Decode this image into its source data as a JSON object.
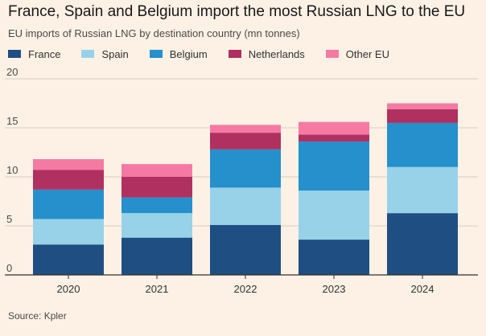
{
  "title": "France, Spain and Belgium import the most Russian LNG to the EU",
  "subtitle": "EU imports of Russian LNG by destination country (mn tonnes)",
  "source": "Source: Kpler",
  "colors": {
    "France": "#1f4e82",
    "Spain": "#98d2e8",
    "Belgium": "#2590cc",
    "Netherlands": "#b03060",
    "Other EU": "#f47aa3",
    "grid": "#d9cdc0",
    "axis": "#33302e"
  },
  "chart_data": {
    "type": "bar",
    "stacked": true,
    "title": "France, Spain and Belgium import the most Russian LNG to the EU",
    "subtitle": "EU imports of Russian LNG by destination country (mn tonnes)",
    "xlabel": "",
    "ylabel": "",
    "ylim": [
      0,
      20
    ],
    "yticks": [
      0,
      5,
      10,
      15,
      20
    ],
    "grid": true,
    "legend": "top-left",
    "categories": [
      "2020",
      "2021",
      "2022",
      "2023",
      "2024"
    ],
    "series": [
      {
        "name": "France",
        "values": [
          3.1,
          3.8,
          5.1,
          3.6,
          6.3
        ]
      },
      {
        "name": "Spain",
        "values": [
          2.6,
          2.5,
          3.8,
          5.0,
          4.7
        ]
      },
      {
        "name": "Belgium",
        "values": [
          3.0,
          1.6,
          3.9,
          5.0,
          4.5
        ]
      },
      {
        "name": "Netherlands",
        "values": [
          2.0,
          2.1,
          1.7,
          0.7,
          1.4
        ]
      },
      {
        "name": "Other EU",
        "values": [
          1.1,
          1.3,
          0.8,
          1.3,
          0.6
        ]
      }
    ]
  }
}
